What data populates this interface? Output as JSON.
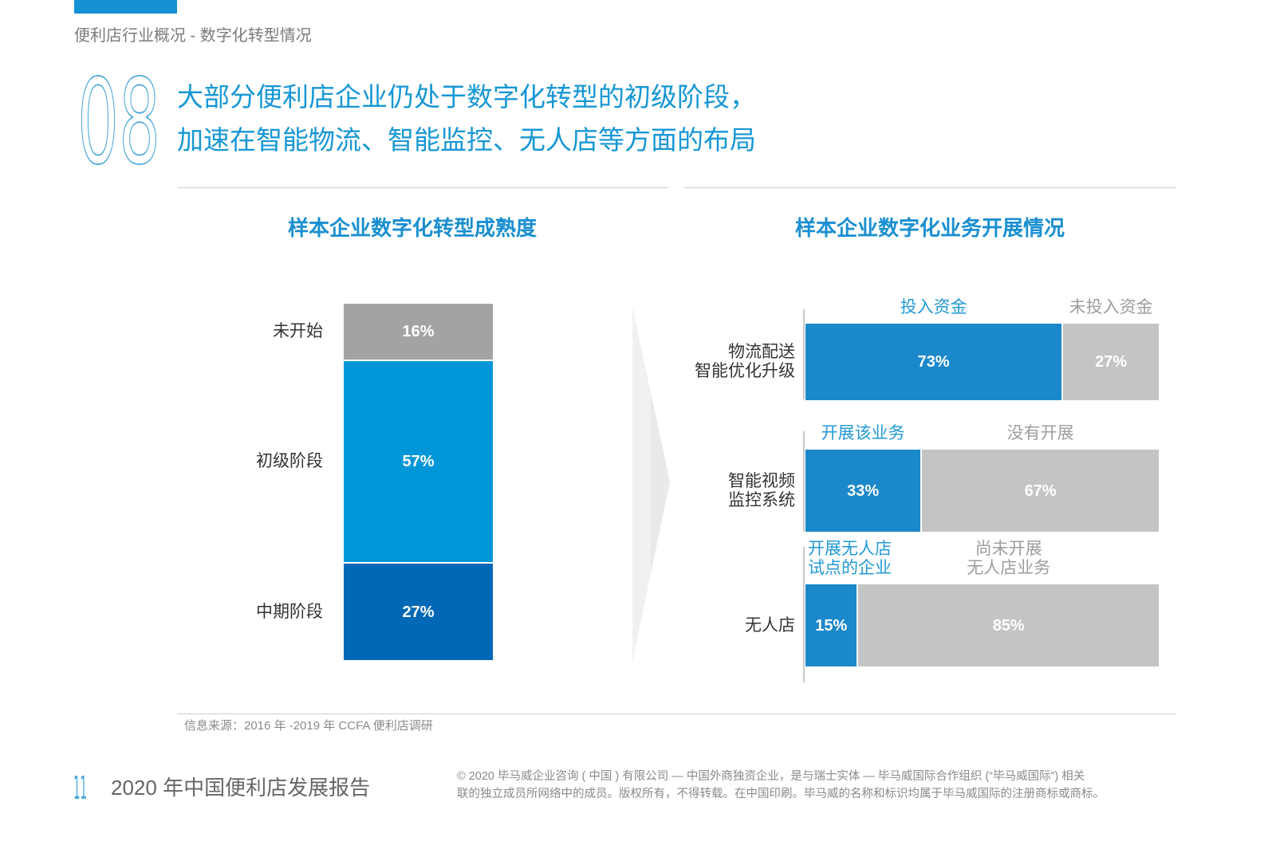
{
  "header": {
    "accent_color": "#1591d6",
    "section_title": "便利店行业概况 - 数字化转型情况"
  },
  "hero": {
    "section_number": "08",
    "number_color": "#4aa8da",
    "title_color": "#1697d5",
    "title_line_1": "大部分便利店企业仍处于数字化转型的初级阶段，",
    "title_line_2": "加速在智能物流、智能监控、无人店等方面的布局"
  },
  "chart_data": [
    {
      "type": "bar",
      "orientation": "vertical",
      "stacking": "stacked",
      "title": "样本企业数字化转型成熟度",
      "title_color": "#1a8fd0",
      "categories": [
        "未开始",
        "初级阶段",
        "中期阶段"
      ],
      "values": [
        16,
        57,
        27
      ],
      "labels": [
        "16%",
        "57%",
        "27%"
      ],
      "colors": [
        "#a3a3a3",
        "#0096d8",
        "#0068b5"
      ],
      "ylim": [
        0,
        100
      ],
      "grid": false,
      "legend": "none"
    },
    {
      "type": "bar",
      "orientation": "horizontal",
      "stacking": "stacked",
      "title": "样本企业数字化业务开展情况",
      "title_color": "#1a8fd0",
      "xlim": [
        0,
        100
      ],
      "grid": false,
      "legend": "above each bar",
      "rows": [
        {
          "category": [
            "物流配送",
            "智能优化升级"
          ],
          "segments": [
            {
              "name": [
                "投入资金"
              ],
              "value": 73,
              "label": "73%",
              "color": "#1b88ca",
              "legend_color": "#2299d6"
            },
            {
              "name": [
                "未投入资金"
              ],
              "value": 27,
              "label": "27%",
              "color": "#c4c4c4",
              "legend_color": "#9d9d9d"
            }
          ]
        },
        {
          "category": [
            "智能视频",
            "监控系统"
          ],
          "segments": [
            {
              "name": [
                "开展该业务"
              ],
              "value": 33,
              "label": "33%",
              "color": "#1b88ca",
              "legend_color": "#2299d6"
            },
            {
              "name": [
                "没有开展"
              ],
              "value": 67,
              "label": "67%",
              "color": "#c4c4c4",
              "legend_color": "#9d9d9d"
            }
          ]
        },
        {
          "category": [
            "无人店"
          ],
          "segments": [
            {
              "name": [
                "开展无人店",
                "试点的企业"
              ],
              "value": 15,
              "label": "15%",
              "color": "#1b88ca",
              "legend_color": "#2299d6"
            },
            {
              "name": [
                "尚未开展",
                "无人店业务"
              ],
              "value": 85,
              "label": "85%",
              "color": "#c4c4c4",
              "legend_color": "#9d9d9d"
            }
          ]
        }
      ]
    }
  ],
  "source_note": "信息来源：2016 年 -2019 年 CCFA 便利店调研",
  "footer": {
    "page_number": "11",
    "report_title": "2020 年中国便利店发展报告",
    "copyright_line_1": "© 2020 毕马威企业咨询 ( 中国 ) 有限公司 — 中国外商独资企业，是与瑞士实体 — 毕马威国际合作组织 (“毕马威国际”) 相关",
    "copyright_line_2": "联的独立成员所网络中的成员。版权所有，不得转载。在中国印刷。毕马威的名称和标识均属于毕马威国际的注册商标或商标。"
  }
}
